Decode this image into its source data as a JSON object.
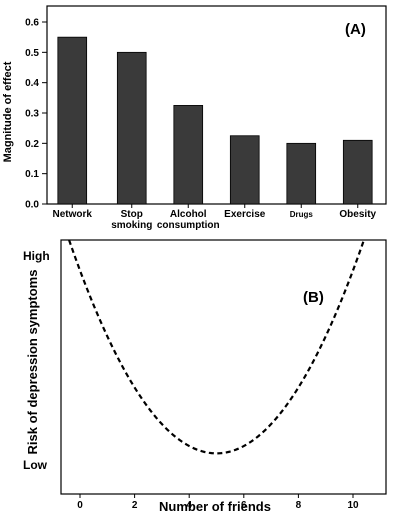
{
  "chart_data": [
    {
      "type": "bar",
      "panel_label": "(A)",
      "ylabel": "Magnitude of effect",
      "xlabel": "",
      "ylim": [
        0,
        0.6
      ],
      "yticks": [
        "0.0",
        "0.1",
        "0.2",
        "0.3",
        "0.4",
        "0.5",
        "0.6"
      ],
      "categories": [
        [
          "Network"
        ],
        [
          "Stop",
          "smoking"
        ],
        [
          "Alcohol",
          "consumption"
        ],
        [
          "Exercise"
        ],
        [
          "Drugs"
        ],
        [
          "Obesity"
        ]
      ],
      "values": [
        0.55,
        0.5,
        0.325,
        0.225,
        0.2,
        0.21
      ],
      "bar_color": "#3a3a3a",
      "grid": false
    },
    {
      "type": "line",
      "panel_label": "(B)",
      "xlabel": "Number of friends",
      "ylabel": "Risk of depression symptoms",
      "xlim": [
        -0.5,
        10.5
      ],
      "xticks": [
        "0",
        "2",
        "4",
        "6",
        "8",
        "10"
      ],
      "ytick_labels": [
        "High",
        "Low"
      ],
      "ylim": [
        0,
        1
      ],
      "line_style": "dashed",
      "series": [
        {
          "x": [
            -0.4,
            5,
            10.4
          ],
          "y": [
            1.0,
            0.16,
            1.0
          ]
        }
      ],
      "curve": {
        "vertex_x": 5,
        "vertex_y": 0.16,
        "edge_y": 1.0
      },
      "grid": false
    }
  ]
}
